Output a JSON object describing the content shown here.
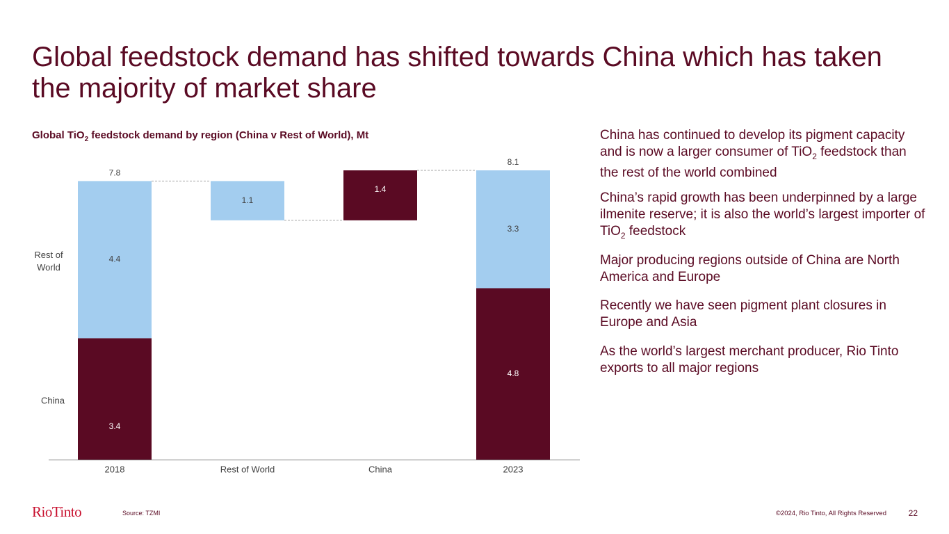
{
  "slide": {
    "title": "Global feedstock demand has shifted towards China which has taken the majority of market share",
    "chart_title_prefix": "Global TiO",
    "chart_title_sub": "2",
    "chart_title_suffix": " feedstock demand by region (China v Rest of World), Mt",
    "bullets": [
      {
        "before": "China has continued to develop its pigment capacity and is now a larger consumer of TiO",
        "sub": "2",
        "after": " feedstock than the rest of the world combined"
      },
      {
        "before": "China’s rapid growth has been underpinned by a large ilmenite reserve; it is also the world’s largest importer of TiO",
        "sub": "2",
        "after": " feedstock"
      },
      {
        "before": "Major producing regions outside of China are North America and Europe",
        "sub": "",
        "after": ""
      },
      {
        "before": "Recently we have seen pigment plant closures in Europe and Asia",
        "sub": "",
        "after": ""
      },
      {
        "before": "As the world’s largest merchant producer, Rio Tinto exports to all major regions",
        "sub": "",
        "after": ""
      }
    ],
    "logo": "RioTinto",
    "source": "Source: TZMI",
    "copyright": "©2024, Rio Tinto, All Rights Reserved",
    "page_number": "22"
  },
  "colors": {
    "china": "#5a0a23",
    "rest_of_world": "#a3cdef",
    "axis": "#7f7f7f",
    "connector": "#a6a6a6",
    "text": "#5a0a23",
    "label_dark": "#404040",
    "label_light": "#ffffff"
  },
  "chart_data": {
    "type": "bar",
    "subtype": "waterfall-stacked",
    "title": "Global TiO2 feedstock demand by region (China v Rest of World), Mt",
    "categories": [
      "2018",
      "Rest of World",
      "China",
      "2023"
    ],
    "row_labels": [
      "Rest of World",
      "China"
    ],
    "ylim": [
      0,
      8.1
    ],
    "bars": [
      {
        "category": "2018",
        "kind": "total",
        "segments": [
          {
            "series": "China",
            "value": 3.4,
            "label": "3.4"
          },
          {
            "series": "Rest of World",
            "value": 4.4,
            "label": "4.4"
          }
        ],
        "total": 7.8,
        "total_label": "7.8"
      },
      {
        "category": "Rest of World",
        "kind": "decrease",
        "series": "Rest of World",
        "from": 7.8,
        "to": 6.7,
        "value": 1.1,
        "label": "1.1"
      },
      {
        "category": "China",
        "kind": "increase",
        "series": "China",
        "from": 6.7,
        "to": 8.1,
        "value": 1.4,
        "label": "1.4"
      },
      {
        "category": "2023",
        "kind": "total",
        "segments": [
          {
            "series": "China",
            "value": 4.8,
            "label": "4.8"
          },
          {
            "series": "Rest of World",
            "value": 3.3,
            "label": "3.3"
          }
        ],
        "total": 8.1,
        "total_label": "8.1"
      }
    ]
  }
}
